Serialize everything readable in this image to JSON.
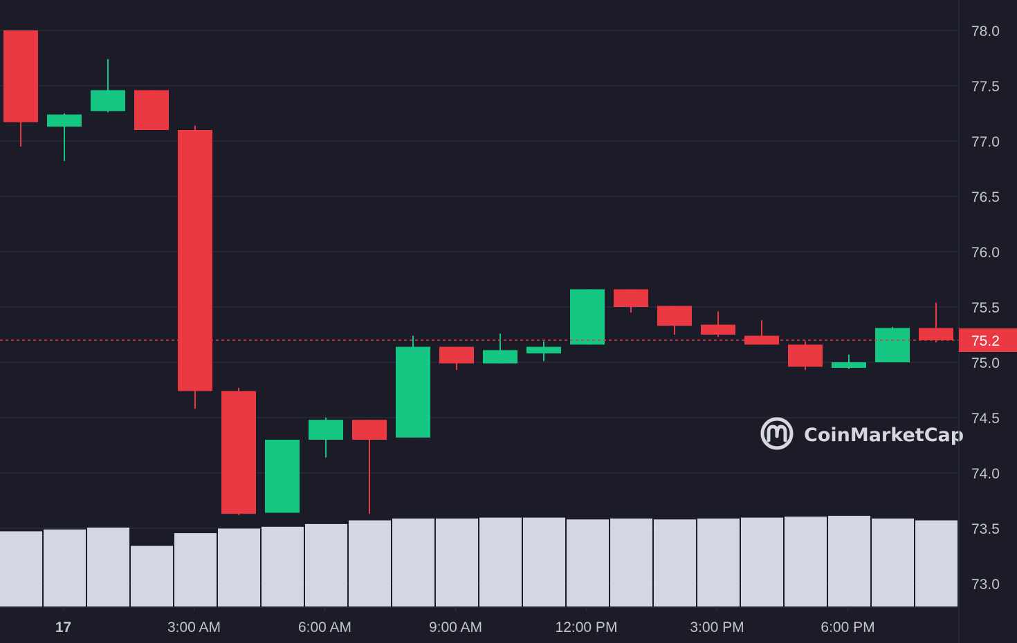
{
  "chart_data": {
    "type": "candlestick",
    "colors": {
      "background": "#1b1c27",
      "grid": "#2b2d3a",
      "up": "#16c784",
      "down": "#ea3943",
      "volume": "#d3d7e3",
      "price_line": "#ea3943",
      "axis_text": "#c3c5cc"
    },
    "y_axis": {
      "position": "right",
      "ylim": [
        72.8,
        78.2
      ],
      "ticks": [
        "78.0",
        "77.5",
        "77.0",
        "76.5",
        "76.0",
        "75.5",
        "75.0",
        "74.5",
        "74.0",
        "73.5",
        "73.0"
      ],
      "tick_values": [
        78.0,
        77.5,
        77.0,
        76.5,
        76.0,
        75.5,
        75.0,
        74.5,
        74.0,
        73.5,
        73.0
      ]
    },
    "x_axis": {
      "ticks": [
        {
          "label": "17",
          "bold": true,
          "index": 1.0
        },
        {
          "label": "3:00 AM",
          "bold": false,
          "index": 4.0
        },
        {
          "label": "6:00 AM",
          "bold": false,
          "index": 7.0
        },
        {
          "label": "9:00 AM",
          "bold": false,
          "index": 10.0
        },
        {
          "label": "12:00 PM",
          "bold": false,
          "index": 13.0
        },
        {
          "label": "3:00 PM",
          "bold": false,
          "index": 16.0
        },
        {
          "label": "6:00 PM",
          "bold": false,
          "index": 19.0
        }
      ]
    },
    "candles": [
      {
        "open": 78.0,
        "high": 78.0,
        "low": 76.95,
        "close": 77.17
      },
      {
        "open": 77.13,
        "high": 77.25,
        "low": 76.82,
        "close": 77.24
      },
      {
        "open": 77.27,
        "high": 77.74,
        "low": 77.26,
        "close": 77.46
      },
      {
        "open": 77.46,
        "high": 77.46,
        "low": 77.1,
        "close": 77.1
      },
      {
        "open": 77.1,
        "high": 77.14,
        "low": 74.58,
        "close": 74.74
      },
      {
        "open": 74.74,
        "high": 74.77,
        "low": 73.62,
        "close": 73.63
      },
      {
        "open": 73.64,
        "high": 74.3,
        "low": 73.64,
        "close": 74.3
      },
      {
        "open": 74.3,
        "high": 74.5,
        "low": 74.14,
        "close": 74.48
      },
      {
        "open": 74.48,
        "high": 74.48,
        "low": 73.63,
        "close": 74.3
      },
      {
        "open": 74.32,
        "high": 75.24,
        "low": 74.32,
        "close": 75.14
      },
      {
        "open": 75.14,
        "high": 75.14,
        "low": 74.93,
        "close": 74.99
      },
      {
        "open": 74.99,
        "high": 75.26,
        "low": 74.99,
        "close": 75.11
      },
      {
        "open": 75.08,
        "high": 75.19,
        "low": 75.01,
        "close": 75.14
      },
      {
        "open": 75.16,
        "high": 75.66,
        "low": 75.16,
        "close": 75.66
      },
      {
        "open": 75.66,
        "high": 75.66,
        "low": 75.45,
        "close": 75.5
      },
      {
        "open": 75.51,
        "high": 75.51,
        "low": 75.25,
        "close": 75.33
      },
      {
        "open": 75.34,
        "high": 75.46,
        "low": 75.23,
        "close": 75.25
      },
      {
        "open": 75.24,
        "high": 75.38,
        "low": 75.16,
        "close": 75.16
      },
      {
        "open": 75.16,
        "high": 75.19,
        "low": 74.93,
        "close": 74.96
      },
      {
        "open": 74.95,
        "high": 75.07,
        "low": 74.94,
        "close": 75.0
      },
      {
        "open": 75.0,
        "high": 75.32,
        "low": 75.0,
        "close": 75.31
      },
      {
        "open": 75.31,
        "high": 75.54,
        "low": 75.18,
        "close": 75.2
      }
    ],
    "volumes": [
      0.83,
      0.85,
      0.87,
      0.67,
      0.81,
      0.86,
      0.88,
      0.91,
      0.95,
      0.97,
      0.97,
      0.98,
      0.98,
      0.96,
      0.97,
      0.96,
      0.97,
      0.98,
      0.99,
      1.0,
      0.97,
      0.95
    ],
    "current_price": {
      "value": 75.2,
      "label": "75.2"
    }
  },
  "watermark": {
    "text": "CoinMarketCap",
    "icon": "coinmarketcap-logo-icon"
  }
}
